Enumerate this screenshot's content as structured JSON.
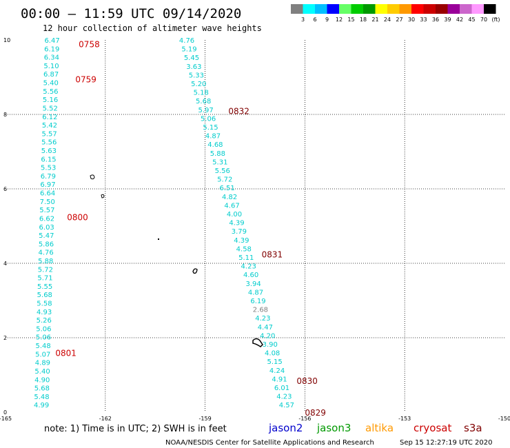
{
  "header": {
    "title": "00:00 – 11:59 UTC 09/14/2020",
    "subtitle": "12 hour collection of altimeter wave heights"
  },
  "colorbar": {
    "colors": [
      "#808080",
      "#00ffff",
      "#00bfff",
      "#0000ff",
      "#66ff66",
      "#00cc00",
      "#009900",
      "#ffff00",
      "#ffcc00",
      "#ff9900",
      "#ff0000",
      "#cc0000",
      "#990000",
      "#990099",
      "#cc66cc",
      "#ff99ff",
      "#000000"
    ],
    "labels": [
      "3",
      "6",
      "9",
      "12",
      "15",
      "18",
      "21",
      "24",
      "27",
      "30",
      "33",
      "36",
      "39",
      "42",
      "45",
      "70",
      "(ft)"
    ]
  },
  "footer": {
    "note": "note:  1) Time is in UTC;  2) SWH is in feet",
    "credit": "NOAA/NESDIS Center for Satellite Applications and Research",
    "timestamp": "Sep 15 12:27:19 UTC 2020"
  },
  "satellites": [
    {
      "name": "jason2",
      "color": "#0000cc"
    },
    {
      "name": "jason3",
      "color": "#009900"
    },
    {
      "name": "altika",
      "color": "#ff9900"
    },
    {
      "name": "cryosat",
      "color": "#cc0000"
    },
    {
      "name": "s3a",
      "color": "#800000"
    }
  ],
  "chart_data": {
    "type": "scatter",
    "x_ticks": [
      "-165",
      "-162",
      "-159",
      "-156",
      "-153",
      "-150"
    ],
    "y_ticks": [
      "0",
      "2",
      "4",
      "6",
      "8",
      "10"
    ],
    "xlim": [
      -165,
      -150
    ],
    "ylim": [
      0,
      10
    ],
    "grid": true,
    "swh_color": "#00cccc",
    "track1": {
      "name": "cryosat",
      "lon": [
        -163.6,
        -163.92
      ],
      "lat": [
        10,
        0.2
      ],
      "values": [
        "6.47",
        "6.19",
        "6.34",
        "5.10",
        "6.87",
        "5.40",
        "5.56",
        "5.16",
        "5.52",
        "6.12",
        "5.42",
        "5.57",
        "5.56",
        "5.63",
        "6.15",
        "5.53",
        "6.79",
        "6.97",
        "6.64",
        "7.50",
        "5.57",
        "6.62",
        "6.03",
        "5.47",
        "5.86",
        "4.76",
        "5.88",
        "5.72",
        "5.71",
        "5.55",
        "5.68",
        "5.58",
        "4.93",
        "5.26",
        "5.06",
        "5.06",
        "5.48",
        "5.07",
        "4.89",
        "5.40",
        "4.90",
        "5.68",
        "5.48",
        "4.99"
      ],
      "times": [
        {
          "label": "0758",
          "lat": 9.9,
          "lon": -162.8
        },
        {
          "label": "0759",
          "lat": 8.95,
          "lon": -162.9
        },
        {
          "label": "0800",
          "lat": 5.25,
          "lon": -163.15
        },
        {
          "label": "0801",
          "lat": 1.6,
          "lon": -163.5
        }
      ]
    },
    "track2": {
      "name": "s3a",
      "lon": [
        -159.55,
        -156.55
      ],
      "lat": [
        10,
        0.2
      ],
      "values": [
        "4.76",
        "5.19",
        "5.45",
        "3.63",
        "5.33",
        "5.20",
        "5.18",
        "5.68",
        "5.97",
        "5.06",
        "5.15",
        "4.87",
        "4.68",
        "5.88",
        "5.31",
        "5.56",
        "5.72",
        "6.51",
        "4.82",
        "4.67",
        "4.00",
        "4.39",
        "3.79",
        "4.39",
        "4.58",
        "5.11",
        "4.23",
        "4.60",
        "3.94",
        "4.87",
        "6.19",
        "2.68",
        "4.23",
        "4.47",
        "4.20",
        "3.90",
        "4.08",
        "5.15",
        "4.24",
        "4.91",
        "6.01",
        "4.23",
        "4.57"
      ],
      "highlight_values": [
        "2.68"
      ],
      "times": [
        {
          "label": "0832",
          "lat": 8.1,
          "lon": -158.3
        },
        {
          "label": "0831",
          "lat": 4.25,
          "lon": -157.3
        },
        {
          "label": "0830",
          "lat": 0.85,
          "lon": -156.25
        },
        {
          "label": "0829",
          "lat": 0.0,
          "lon": -156.0
        }
      ]
    }
  }
}
